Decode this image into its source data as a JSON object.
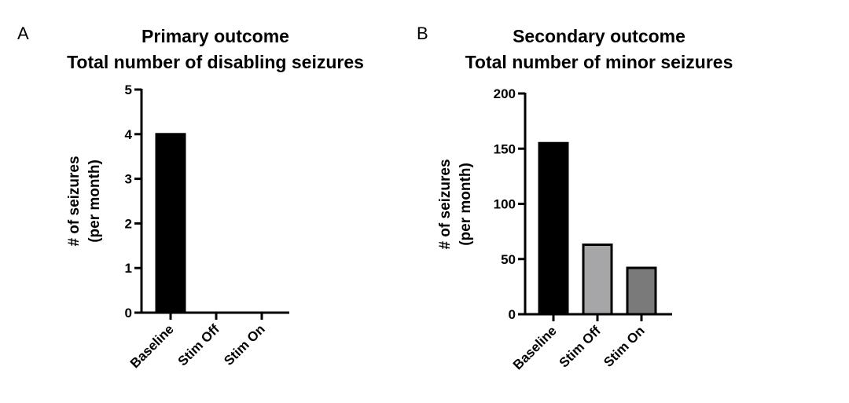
{
  "chart_data": [
    {
      "panel": "A",
      "type": "bar",
      "title": "Primary outcome",
      "subtitle": "Total number of disabling seizures",
      "xlabel": "",
      "ylabel": "# of seizures",
      "ylabel2": "(per month)",
      "categories": [
        "Baseline",
        "Stim Off",
        "Stim On"
      ],
      "values": [
        4,
        0,
        0
      ],
      "colors": [
        "#000000",
        "#a6a6a8",
        "#7a7a7a"
      ],
      "ylim": [
        0,
        5
      ],
      "yticks": [
        0,
        1,
        2,
        3,
        4,
        5
      ],
      "grid": false
    },
    {
      "panel": "B",
      "type": "bar",
      "title": "Secondary outcome",
      "subtitle": "Total number of minor seizures",
      "xlabel": "",
      "ylabel": "# of seizures",
      "ylabel2": "(per month)",
      "categories": [
        "Baseline",
        "Stim Off",
        "Stim On"
      ],
      "values": [
        155,
        63,
        42
      ],
      "colors": [
        "#000000",
        "#a6a6a8",
        "#7a7a7a"
      ],
      "ylim": [
        0,
        200
      ],
      "yticks": [
        0,
        50,
        100,
        150,
        200
      ],
      "grid": false
    }
  ]
}
